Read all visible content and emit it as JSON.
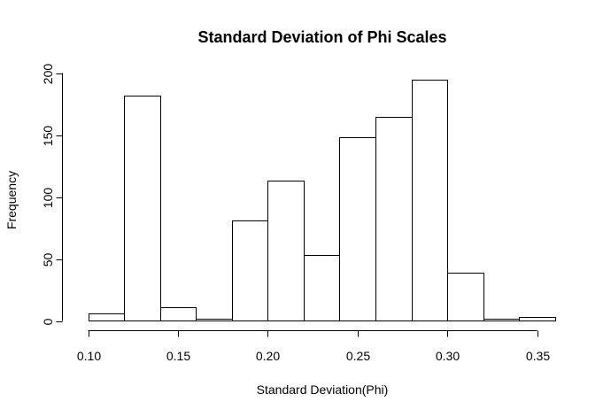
{
  "chart_data": {
    "type": "bar",
    "title": "Standard Deviation of Phi Scales",
    "xlabel": "Standard Deviation(Phi)",
    "ylabel": "Frequency",
    "bins": [
      {
        "start": 0.1,
        "end": 0.12,
        "count": 6
      },
      {
        "start": 0.12,
        "end": 0.14,
        "count": 182
      },
      {
        "start": 0.14,
        "end": 0.16,
        "count": 11
      },
      {
        "start": 0.16,
        "end": 0.18,
        "count": 2
      },
      {
        "start": 0.18,
        "end": 0.2,
        "count": 81
      },
      {
        "start": 0.2,
        "end": 0.22,
        "count": 113
      },
      {
        "start": 0.22,
        "end": 0.24,
        "count": 53
      },
      {
        "start": 0.24,
        "end": 0.26,
        "count": 148
      },
      {
        "start": 0.26,
        "end": 0.28,
        "count": 165
      },
      {
        "start": 0.28,
        "end": 0.3,
        "count": 195
      },
      {
        "start": 0.3,
        "end": 0.32,
        "count": 39
      },
      {
        "start": 0.32,
        "end": 0.34,
        "count": 2
      },
      {
        "start": 0.34,
        "end": 0.36,
        "count": 3
      }
    ],
    "xlim": [
      0.1,
      0.35
    ],
    "ylim": [
      0,
      200
    ],
    "xticks": [
      "0.10",
      "0.15",
      "0.20",
      "0.25",
      "0.30",
      "0.35"
    ],
    "yticks": [
      "0",
      "50",
      "100",
      "150",
      "200"
    ],
    "grid": false,
    "legend": "none"
  }
}
